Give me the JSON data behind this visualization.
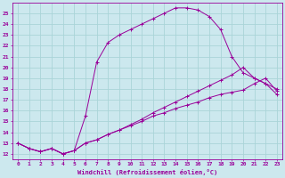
{
  "xlabel": "Windchill (Refroidissement éolien,°C)",
  "bg_color": "#cce8ee",
  "line_color": "#990099",
  "grid_color": "#aad4d8",
  "xlim": [
    -0.5,
    23.5
  ],
  "ylim": [
    11.5,
    26.0
  ],
  "yticks": [
    12,
    13,
    14,
    15,
    16,
    17,
    18,
    19,
    20,
    21,
    22,
    23,
    24,
    25
  ],
  "xticks": [
    0,
    1,
    2,
    3,
    4,
    5,
    6,
    7,
    8,
    9,
    10,
    11,
    12,
    13,
    14,
    15,
    16,
    17,
    18,
    19,
    20,
    21,
    22,
    23
  ],
  "curve1_x": [
    0,
    1,
    2,
    3,
    4,
    5,
    6,
    7,
    8,
    9,
    10,
    11,
    12,
    13,
    14,
    15,
    16,
    17,
    18,
    19,
    20,
    21,
    22,
    23
  ],
  "curve1_y": [
    13.0,
    12.5,
    12.2,
    12.5,
    12.0,
    12.3,
    15.5,
    20.5,
    22.3,
    23.0,
    23.5,
    24.0,
    24.5,
    25.0,
    25.5,
    25.5,
    25.3,
    24.7,
    23.5,
    21.0,
    19.5,
    19.0,
    18.5,
    17.5
  ],
  "curve2_x": [
    0,
    1,
    2,
    3,
    4,
    5,
    6,
    7,
    8,
    9,
    10,
    11,
    12,
    13,
    14,
    15,
    16,
    17,
    18,
    19,
    20,
    21,
    22,
    23
  ],
  "curve2_y": [
    13.0,
    12.5,
    12.2,
    12.5,
    12.0,
    12.3,
    13.0,
    13.3,
    13.8,
    14.2,
    14.6,
    15.0,
    15.5,
    15.8,
    16.2,
    16.5,
    16.8,
    17.2,
    17.5,
    17.7,
    17.9,
    18.5,
    19.0,
    17.8
  ],
  "curve3_x": [
    0,
    1,
    2,
    3,
    4,
    5,
    6,
    7,
    8,
    9,
    10,
    11,
    12,
    13,
    14,
    15,
    16,
    17,
    18,
    19,
    20,
    21,
    22,
    23
  ],
  "curve3_y": [
    13.0,
    12.5,
    12.2,
    12.5,
    12.0,
    12.3,
    13.0,
    13.3,
    13.8,
    14.2,
    14.7,
    15.2,
    15.8,
    16.3,
    16.8,
    17.3,
    17.8,
    18.3,
    18.8,
    19.3,
    20.0,
    19.0,
    18.5,
    18.0
  ]
}
